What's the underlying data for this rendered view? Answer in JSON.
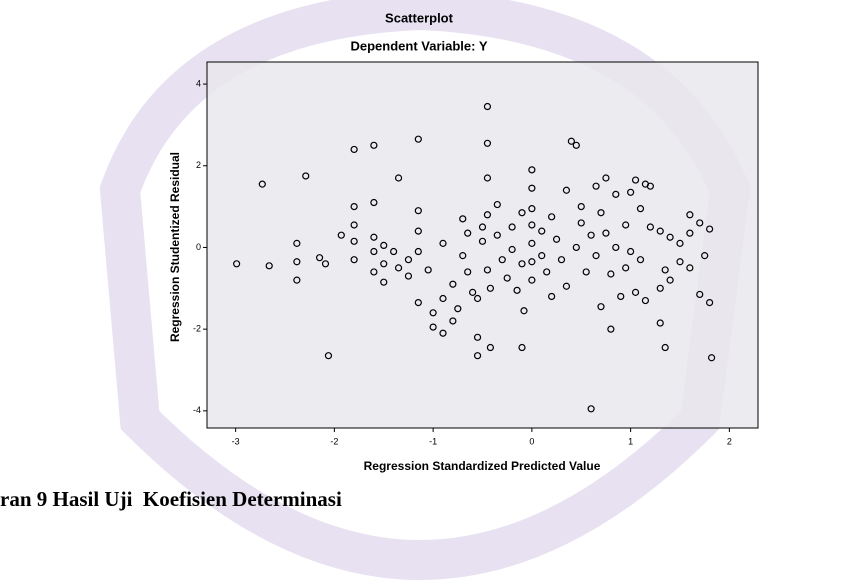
{
  "chart_data": {
    "type": "scatter",
    "title": "Scatterplot",
    "subtitle": "Dependent Variable: Y",
    "x_label": "Regression Standardized Predicted Value",
    "y_label": "Regression Studentized Residual",
    "xlim": [
      -3.29,
      2.29
    ],
    "ylim": [
      -4.42,
      4.54
    ],
    "xticks": [
      -3,
      -2,
      -1,
      0,
      1,
      2
    ],
    "yticks": [
      -4,
      -2,
      0,
      2,
      4
    ],
    "color": "#000000",
    "plot_background": "#e9e7ec",
    "x": [
      -2.99,
      -2.66,
      -2.73,
      -2.29,
      -2.38,
      -2.38,
      -2.38,
      -2.09,
      -2.06,
      -2.15,
      -1.93,
      -1.8,
      -1.8,
      -1.8,
      -1.8,
      -1.8,
      -1.6,
      -1.6,
      -1.6,
      -1.6,
      -1.6,
      -1.5,
      -1.5,
      -1.5,
      -1.4,
      -1.35,
      -1.35,
      -1.25,
      -1.25,
      -1.15,
      -1.15,
      -1.15,
      -1.15,
      -1.15,
      -1.05,
      -1.0,
      -1.0,
      -0.9,
      -0.9,
      -0.9,
      -0.8,
      -0.8,
      -0.75,
      -0.7,
      -0.7,
      -0.65,
      -0.65,
      -0.6,
      -0.55,
      -0.55,
      -0.55,
      -0.5,
      -0.5,
      -0.45,
      -0.45,
      -0.45,
      -0.45,
      -0.45,
      -0.42,
      -0.42,
      -0.35,
      -0.35,
      -0.3,
      -0.25,
      -0.2,
      -0.2,
      -0.15,
      -0.1,
      -0.1,
      -0.1,
      -0.08,
      0,
      0,
      0,
      0,
      0,
      0,
      0,
      0.1,
      0.1,
      0.15,
      0.2,
      0.2,
      0.25,
      0.3,
      0.35,
      0.35,
      0.4,
      0.45,
      0.45,
      0.5,
      0.5,
      0.55,
      0.6,
      0.6,
      0.65,
      0.65,
      0.7,
      0.7,
      0.75,
      0.75,
      0.8,
      0.8,
      0.85,
      0.85,
      0.9,
      0.95,
      0.95,
      1.0,
      1.0,
      1.05,
      1.05,
      1.1,
      1.1,
      1.15,
      1.15,
      1.2,
      1.2,
      1.3,
      1.3,
      1.3,
      1.35,
      1.4,
      1.4,
      1.35,
      1.5,
      1.5,
      1.6,
      1.6,
      1.6,
      1.7,
      1.7,
      1.75,
      1.8,
      1.8,
      1.82
    ],
    "values": [
      -0.4,
      -0.45,
      1.55,
      1.75,
      0.1,
      -0.35,
      -0.8,
      -0.4,
      -2.65,
      -0.25,
      0.3,
      2.4,
      1.0,
      0.55,
      0.15,
      -0.3,
      2.5,
      1.1,
      0.25,
      -0.1,
      -0.6,
      0.05,
      -0.4,
      -0.85,
      -0.1,
      1.7,
      -0.5,
      -0.3,
      -0.7,
      2.65,
      0.9,
      0.4,
      -0.1,
      -1.35,
      -0.55,
      -1.6,
      -1.95,
      -2.1,
      -1.25,
      0.1,
      -0.9,
      -1.8,
      -1.5,
      -0.2,
      0.7,
      0.35,
      -0.6,
      -1.1,
      -2.65,
      -2.2,
      -1.25,
      0.5,
      0.15,
      3.45,
      2.55,
      1.7,
      0.8,
      -0.55,
      -1.0,
      -2.45,
      1.05,
      0.3,
      -0.3,
      -0.75,
      0.5,
      -0.05,
      -1.05,
      0.85,
      -0.4,
      -2.45,
      -1.55,
      1.9,
      1.45,
      0.95,
      0.55,
      0.1,
      -0.35,
      -0.8,
      0.4,
      -0.2,
      -0.6,
      0.75,
      -1.2,
      0.2,
      -0.3,
      1.4,
      -0.95,
      2.6,
      2.5,
      0.0,
      1.0,
      0.6,
      -0.6,
      -3.95,
      0.3,
      1.5,
      -0.2,
      0.85,
      -1.45,
      1.7,
      0.35,
      -0.65,
      -2.0,
      1.3,
      0.0,
      -1.2,
      0.55,
      -0.5,
      1.35,
      -0.1,
      1.65,
      -1.1,
      0.95,
      -0.3,
      1.55,
      -1.3,
      1.5,
      0.5,
      0.4,
      -1.0,
      -1.85,
      -0.55,
      0.25,
      -0.8,
      -2.45,
      0.1,
      -0.35,
      0.8,
      0.35,
      -0.5,
      0.6,
      -1.15,
      -0.2,
      0.45,
      -1.35,
      -2.7
    ]
  },
  "caption": "ran 9 Hasil Uji  Koefisien Determinasi"
}
